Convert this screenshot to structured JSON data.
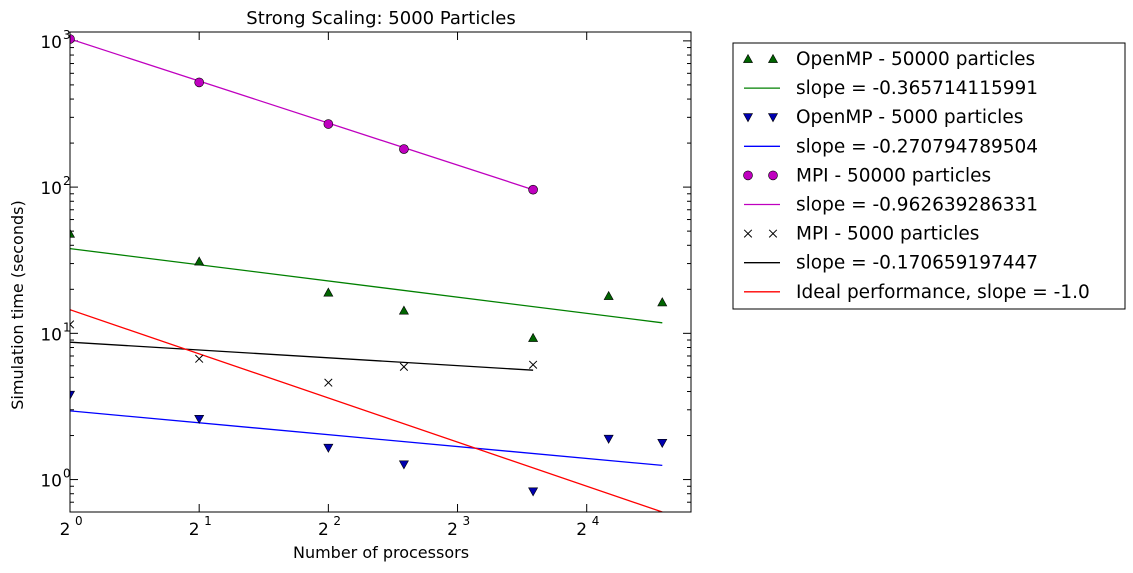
{
  "chart_data": {
    "type": "scatter",
    "title": "Strong Scaling: 5000 Particles",
    "xlabel": "Number of processors",
    "ylabel": "Simulation time (seconds)",
    "x_scale": "log2",
    "y_scale": "log10",
    "xlim": [
      1,
      28
    ],
    "ylim": [
      0.6,
      1150
    ],
    "x_ticks": [
      {
        "value": 1,
        "base": "2",
        "exp": "0"
      },
      {
        "value": 2,
        "base": "2",
        "exp": "1"
      },
      {
        "value": 4,
        "base": "2",
        "exp": "2"
      },
      {
        "value": 8,
        "base": "2",
        "exp": "3"
      },
      {
        "value": 16,
        "base": "2",
        "exp": "4"
      }
    ],
    "y_ticks": [
      {
        "value": 1,
        "base": "10",
        "exp": "0"
      },
      {
        "value": 10,
        "base": "10",
        "exp": "1"
      },
      {
        "value": 100,
        "base": "10",
        "exp": "2"
      },
      {
        "value": 1000,
        "base": "10",
        "exp": "3"
      }
    ],
    "legend_position": "outside-right",
    "series": [
      {
        "name": "OpenMP - 50000 particles",
        "kind": "points",
        "marker": "triangle-up",
        "color": "#006400",
        "x": [
          1,
          2,
          4,
          6,
          12,
          18,
          24
        ],
        "y": [
          48,
          31,
          19,
          14.3,
          9.3,
          18,
          16.3
        ]
      },
      {
        "name": "slope = -0.365714115991",
        "kind": "line",
        "color": "#008000",
        "x": [
          1,
          24
        ],
        "y": [
          38,
          11.8
        ]
      },
      {
        "name": "OpenMP - 5000 particles",
        "kind": "points",
        "marker": "triangle-down",
        "color": "#0000b0",
        "x": [
          1,
          2,
          4,
          6,
          12,
          18,
          24
        ],
        "y": [
          3.8,
          2.6,
          1.65,
          1.27,
          0.83,
          1.9,
          1.78
        ]
      },
      {
        "name": "slope = -0.270794789504",
        "kind": "line",
        "color": "#0000ff",
        "x": [
          1,
          24
        ],
        "y": [
          2.95,
          1.25
        ]
      },
      {
        "name": "MPI - 50000 particles",
        "kind": "points",
        "marker": "circle",
        "color": "#bf00bf",
        "x": [
          1,
          2,
          4,
          6,
          12
        ],
        "y": [
          1030,
          520,
          270,
          182,
          96
        ]
      },
      {
        "name": "slope = -0.962639286331",
        "kind": "line",
        "color": "#bf00bf",
        "x": [
          1,
          12
        ],
        "y": [
          1030,
          96
        ]
      },
      {
        "name": "MPI - 5000 particles",
        "kind": "points",
        "marker": "x",
        "color": "#000000",
        "x": [
          1,
          2,
          4,
          6,
          12
        ],
        "y": [
          11.5,
          6.7,
          4.6,
          5.9,
          6.1
        ]
      },
      {
        "name": "slope = -0.170659197447",
        "kind": "line",
        "color": "#000000",
        "x": [
          1,
          12
        ],
        "y": [
          8.7,
          5.6
        ]
      },
      {
        "name": "Ideal performance, slope = -1.0",
        "kind": "line",
        "color": "#ff0000",
        "x": [
          1,
          24
        ],
        "y": [
          14.5,
          0.6
        ]
      }
    ]
  }
}
